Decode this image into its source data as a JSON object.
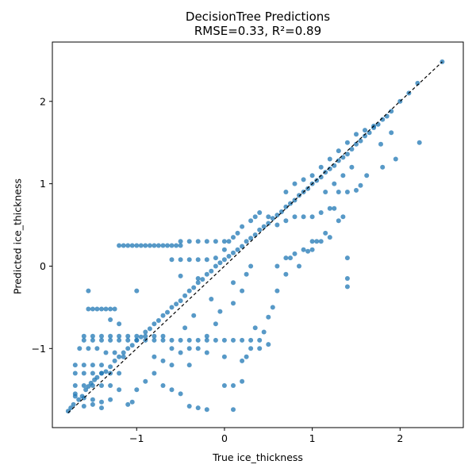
{
  "chart_data": {
    "type": "scatter",
    "title": "DecisionTree Predictions",
    "subtitle": "RMSE=0.33, R²=0.89",
    "xlabel": "True ice_thickness",
    "ylabel": "Predicted ice_thickness",
    "xlim": [
      -1.96,
      2.72
    ],
    "ylim": [
      -1.96,
      2.72
    ],
    "xticks": [
      -1,
      0,
      1,
      2
    ],
    "yticks": [
      -1,
      0,
      1,
      2
    ],
    "xtick_labels": [
      "−1",
      "0",
      "1",
      "2"
    ],
    "ytick_labels": [
      "−1",
      "0",
      "1",
      "2"
    ],
    "grid": false,
    "marker_color": "#1f77b4",
    "reference_line": {
      "style": "dashed",
      "color": "#000000",
      "from": [
        -1.78,
        -1.78
      ],
      "to": [
        2.48,
        2.48
      ]
    },
    "points": [
      [
        -1.78,
        -1.76
      ],
      [
        -1.75,
        -1.72
      ],
      [
        -1.72,
        -1.68
      ],
      [
        -1.7,
        -1.55
      ],
      [
        -1.66,
        -1.62
      ],
      [
        -1.62,
        -1.58
      ],
      [
        -1.58,
        -1.5
      ],
      [
        -1.55,
        -1.46
      ],
      [
        -1.52,
        -1.42
      ],
      [
        -1.48,
        -1.38
      ],
      [
        -1.45,
        -1.35
      ],
      [
        -1.4,
        -1.3
      ],
      [
        -1.35,
        -1.28
      ],
      [
        -1.3,
        -1.22
      ],
      [
        -1.25,
        -1.15
      ],
      [
        -1.2,
        -1.1
      ],
      [
        -1.15,
        -1.05
      ],
      [
        -1.1,
        -1.0
      ],
      [
        -1.05,
        -0.96
      ],
      [
        -1.0,
        -0.9
      ],
      [
        -0.95,
        -0.86
      ],
      [
        -0.9,
        -0.8
      ],
      [
        -0.85,
        -0.76
      ],
      [
        -0.8,
        -0.7
      ],
      [
        -0.75,
        -0.66
      ],
      [
        -0.7,
        -0.6
      ],
      [
        -0.65,
        -0.56
      ],
      [
        -0.6,
        -0.5
      ],
      [
        -0.55,
        -0.46
      ],
      [
        -0.5,
        -0.42
      ],
      [
        -0.45,
        -0.36
      ],
      [
        -0.4,
        -0.3
      ],
      [
        -0.35,
        -0.26
      ],
      [
        -0.3,
        -0.2
      ],
      [
        -0.25,
        -0.16
      ],
      [
        -0.2,
        -0.1
      ],
      [
        -0.15,
        -0.06
      ],
      [
        -0.1,
        0.0
      ],
      [
        -0.05,
        0.04
      ],
      [
        0.0,
        0.08
      ],
      [
        0.05,
        0.12
      ],
      [
        0.1,
        0.16
      ],
      [
        0.15,
        0.2
      ],
      [
        0.2,
        0.24
      ],
      [
        0.25,
        0.3
      ],
      [
        0.3,
        0.34
      ],
      [
        0.35,
        0.38
      ],
      [
        0.4,
        0.44
      ],
      [
        0.45,
        0.48
      ],
      [
        0.5,
        0.52
      ],
      [
        0.55,
        0.58
      ],
      [
        0.6,
        0.62
      ],
      [
        0.65,
        0.66
      ],
      [
        0.7,
        0.72
      ],
      [
        0.75,
        0.76
      ],
      [
        0.8,
        0.8
      ],
      [
        0.85,
        0.86
      ],
      [
        0.9,
        0.9
      ],
      [
        0.95,
        0.94
      ],
      [
        1.0,
        1.0
      ],
      [
        1.05,
        1.04
      ],
      [
        1.1,
        1.08
      ],
      [
        1.15,
        1.14
      ],
      [
        1.2,
        1.18
      ],
      [
        1.25,
        1.22
      ],
      [
        1.3,
        1.28
      ],
      [
        1.35,
        1.32
      ],
      [
        1.4,
        1.36
      ],
      [
        1.45,
        1.42
      ],
      [
        1.5,
        1.48
      ],
      [
        1.55,
        1.52
      ],
      [
        1.6,
        1.58
      ],
      [
        1.65,
        1.62
      ],
      [
        1.7,
        1.68
      ],
      [
        1.75,
        1.72
      ],
      [
        1.8,
        1.78
      ],
      [
        1.85,
        1.82
      ],
      [
        1.9,
        1.88
      ],
      [
        2.0,
        2.0
      ],
      [
        2.1,
        2.1
      ],
      [
        2.2,
        2.22
      ],
      [
        2.48,
        2.48
      ],
      [
        2.22,
        1.5
      ],
      [
        1.9,
        1.62
      ],
      [
        1.95,
        1.3
      ],
      [
        1.8,
        1.2
      ],
      [
        1.78,
        1.48
      ],
      [
        1.62,
        1.1
      ],
      [
        1.55,
        0.98
      ],
      [
        1.5,
        0.92
      ],
      [
        1.35,
        0.6
      ],
      [
        1.3,
        0.55
      ],
      [
        1.25,
        0.7
      ],
      [
        1.15,
        0.4
      ],
      [
        1.05,
        0.3
      ],
      [
        1.0,
        0.2
      ],
      [
        0.95,
        0.18
      ],
      [
        1.4,
        0.1
      ],
      [
        1.4,
        -0.15
      ],
      [
        1.4,
        -0.25
      ],
      [
        0.85,
        0.0
      ],
      [
        0.75,
        0.1
      ],
      [
        0.7,
        -0.1
      ],
      [
        0.6,
        -0.3
      ],
      [
        0.55,
        -0.5
      ],
      [
        0.5,
        -0.62
      ],
      [
        0.45,
        -0.8
      ],
      [
        0.4,
        -0.9
      ],
      [
        0.35,
        -0.75
      ],
      [
        0.3,
        -1.0
      ],
      [
        0.25,
        -1.1
      ],
      [
        0.2,
        -1.4
      ],
      [
        0.1,
        -1.45
      ],
      [
        0.0,
        -1.45
      ],
      [
        0.1,
        -1.74
      ],
      [
        -0.2,
        -1.74
      ],
      [
        -0.3,
        -1.72
      ],
      [
        -0.4,
        -1.7
      ],
      [
        -0.5,
        -1.55
      ],
      [
        -0.6,
        -1.5
      ],
      [
        -0.7,
        -1.45
      ],
      [
        -0.8,
        -1.3
      ],
      [
        -0.9,
        -1.4
      ],
      [
        -1.0,
        -1.5
      ],
      [
        -1.05,
        -1.65
      ],
      [
        -1.1,
        -1.68
      ],
      [
        -0.6,
        -1.2
      ],
      [
        -0.4,
        -1.2
      ],
      [
        -0.3,
        -1.0
      ],
      [
        -0.2,
        -0.85
      ],
      [
        -0.1,
        -0.7
      ],
      [
        -0.05,
        -0.55
      ],
      [
        0.1,
        -0.45
      ],
      [
        0.2,
        -0.3
      ],
      [
        0.25,
        -0.1
      ],
      [
        0.3,
        0.0
      ],
      [
        0.1,
        -0.2
      ],
      [
        -0.15,
        -0.4
      ],
      [
        -0.35,
        -0.6
      ],
      [
        -0.45,
        -0.75
      ],
      [
        -1.55,
        -0.3
      ],
      [
        -1.55,
        -0.52
      ],
      [
        -1.5,
        -0.52
      ],
      [
        -1.45,
        -0.52
      ],
      [
        -1.4,
        -0.52
      ],
      [
        -1.35,
        -0.52
      ],
      [
        -1.3,
        -0.52
      ],
      [
        -1.25,
        -0.52
      ],
      [
        -1.3,
        -0.65
      ],
      [
        -1.2,
        -0.7
      ],
      [
        -1.0,
        -0.3
      ],
      [
        -1.2,
        0.25
      ],
      [
        -1.15,
        0.25
      ],
      [
        -1.1,
        0.25
      ],
      [
        -1.05,
        0.25
      ],
      [
        -1.0,
        0.25
      ],
      [
        -0.95,
        0.25
      ],
      [
        -0.9,
        0.25
      ],
      [
        -0.85,
        0.25
      ],
      [
        -0.8,
        0.25
      ],
      [
        -0.75,
        0.25
      ],
      [
        -0.7,
        0.25
      ],
      [
        -0.65,
        0.25
      ],
      [
        -0.6,
        0.25
      ],
      [
        -0.55,
        0.25
      ],
      [
        -0.5,
        0.25
      ],
      [
        -0.5,
        0.3
      ],
      [
        -0.4,
        0.3
      ],
      [
        -0.3,
        0.3
      ],
      [
        -0.2,
        0.3
      ],
      [
        -0.1,
        0.3
      ],
      [
        0.0,
        0.3
      ],
      [
        -0.6,
        0.08
      ],
      [
        -0.5,
        0.08
      ],
      [
        -0.4,
        0.08
      ],
      [
        -0.3,
        0.08
      ],
      [
        -0.2,
        0.08
      ],
      [
        -0.1,
        0.1
      ],
      [
        -0.5,
        -0.12
      ],
      [
        -0.3,
        -0.15
      ],
      [
        -1.6,
        -0.85
      ],
      [
        -1.5,
        -0.85
      ],
      [
        -1.4,
        -0.85
      ],
      [
        -1.3,
        -0.85
      ],
      [
        -1.2,
        -0.85
      ],
      [
        -1.1,
        -0.85
      ],
      [
        -1.0,
        -0.85
      ],
      [
        -0.9,
        -0.85
      ],
      [
        -0.8,
        -0.85
      ],
      [
        -0.7,
        -0.85
      ],
      [
        -1.6,
        -0.9
      ],
      [
        -1.5,
        -0.9
      ],
      [
        -1.4,
        -0.9
      ],
      [
        -1.3,
        -0.9
      ],
      [
        -1.2,
        -0.9
      ],
      [
        -1.1,
        -0.9
      ],
      [
        -1.0,
        -0.9
      ],
      [
        -0.9,
        -0.9
      ],
      [
        -0.8,
        -0.9
      ],
      [
        -0.7,
        -0.9
      ],
      [
        -0.6,
        -0.9
      ],
      [
        -0.5,
        -0.9
      ],
      [
        -0.4,
        -0.9
      ],
      [
        -0.3,
        -0.9
      ],
      [
        -0.2,
        -0.9
      ],
      [
        -0.1,
        -0.9
      ],
      [
        0.0,
        -0.9
      ],
      [
        0.1,
        -0.9
      ],
      [
        0.2,
        -0.9
      ],
      [
        0.3,
        -0.9
      ],
      [
        -1.7,
        -1.3
      ],
      [
        -1.6,
        -1.3
      ],
      [
        -1.5,
        -1.3
      ],
      [
        -1.4,
        -1.3
      ],
      [
        -1.3,
        -1.3
      ],
      [
        -1.2,
        -1.3
      ],
      [
        -1.7,
        -1.45
      ],
      [
        -1.6,
        -1.45
      ],
      [
        -1.5,
        -1.45
      ],
      [
        -1.4,
        -1.45
      ],
      [
        -1.3,
        -1.45
      ],
      [
        -1.2,
        -1.5
      ],
      [
        -1.7,
        -1.58
      ],
      [
        -1.6,
        -1.6
      ],
      [
        -1.5,
        -1.62
      ],
      [
        -1.4,
        -1.65
      ],
      [
        -1.3,
        -1.62
      ],
      [
        -1.6,
        -1.7
      ],
      [
        -1.5,
        -1.68
      ],
      [
        -1.4,
        -1.72
      ],
      [
        -1.7,
        -1.2
      ],
      [
        -1.6,
        -1.2
      ],
      [
        -1.5,
        -1.2
      ],
      [
        -1.4,
        -1.2
      ],
      [
        -1.65,
        -1.0
      ],
      [
        -1.55,
        -1.0
      ],
      [
        -1.45,
        -1.0
      ],
      [
        -1.35,
        -1.05
      ],
      [
        -1.25,
        -1.05
      ],
      [
        -1.15,
        -1.1
      ],
      [
        -0.8,
        -1.1
      ],
      [
        -0.7,
        -1.15
      ],
      [
        -0.6,
        -1.0
      ],
      [
        -0.5,
        -1.05
      ],
      [
        -0.4,
        -1.0
      ],
      [
        -0.2,
        -1.05
      ],
      [
        0.0,
        -1.1
      ],
      [
        0.2,
        -1.15
      ],
      [
        0.4,
        -1.0
      ],
      [
        0.5,
        -0.95
      ],
      [
        0.6,
        0.0
      ],
      [
        0.7,
        0.1
      ],
      [
        0.8,
        0.15
      ],
      [
        0.9,
        0.2
      ],
      [
        1.0,
        0.3
      ],
      [
        1.1,
        0.3
      ],
      [
        1.2,
        0.35
      ],
      [
        0.6,
        0.5
      ],
      [
        0.7,
        0.55
      ],
      [
        0.8,
        0.6
      ],
      [
        0.9,
        0.6
      ],
      [
        1.0,
        0.6
      ],
      [
        1.1,
        0.65
      ],
      [
        1.2,
        0.7
      ],
      [
        1.3,
        0.9
      ],
      [
        1.4,
        0.9
      ],
      [
        0.5,
        0.6
      ],
      [
        0.4,
        0.65
      ],
      [
        0.35,
        0.6
      ],
      [
        0.3,
        0.55
      ],
      [
        0.2,
        0.48
      ],
      [
        0.15,
        0.4
      ],
      [
        0.1,
        0.35
      ],
      [
        0.05,
        0.3
      ],
      [
        0.0,
        0.2
      ],
      [
        0.7,
        0.9
      ],
      [
        0.8,
        1.0
      ],
      [
        0.9,
        1.05
      ],
      [
        1.0,
        1.1
      ],
      [
        1.1,
        1.2
      ],
      [
        1.2,
        1.3
      ],
      [
        1.3,
        1.4
      ],
      [
        1.4,
        1.5
      ],
      [
        1.5,
        1.6
      ],
      [
        1.6,
        1.65
      ],
      [
        1.7,
        1.7
      ],
      [
        1.15,
        0.9
      ],
      [
        1.25,
        1.0
      ],
      [
        1.35,
        1.1
      ],
      [
        1.45,
        1.2
      ]
    ]
  }
}
